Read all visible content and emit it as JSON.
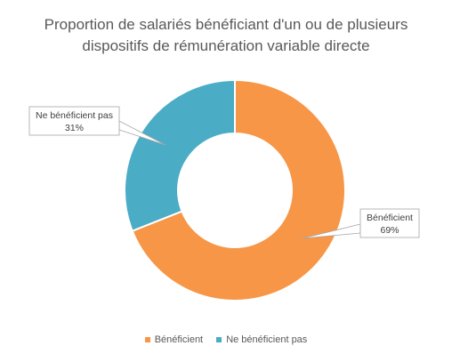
{
  "chart_data": {
    "type": "pie",
    "title": "Proportion de salariés bénéficiant d'un ou de plusieurs dispositifs de rémunération variable directe",
    "title_lines": [
      "Proportion de salariés bénéficiant d'un ou de plusieurs",
      "dispositifs de rémunération variable directe"
    ],
    "donut": true,
    "legend_position": "bottom",
    "slices": [
      {
        "label": "Bénéficient",
        "value": 69,
        "value_label": "69%",
        "color": "#F79646"
      },
      {
        "label": "Ne bénéficient pas",
        "value": 31,
        "value_label": "31%",
        "color": "#4BACC6"
      }
    ]
  }
}
